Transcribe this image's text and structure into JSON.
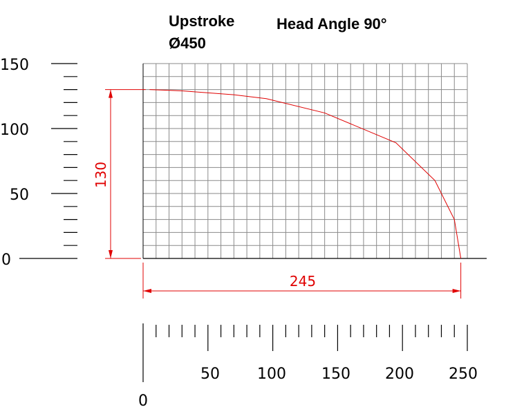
{
  "chart_data": {
    "type": "line",
    "title": "Upstroke",
    "subtitle": "Ø450",
    "annotation": "Head Angle 90°",
    "xlim": [
      0,
      250
    ],
    "ylim": [
      0,
      150
    ],
    "x_ticks": [
      "0",
      "50",
      "100",
      "150",
      "200",
      "250"
    ],
    "y_ticks": [
      "0",
      "50",
      "100",
      "150"
    ],
    "grid": true,
    "series": [
      {
        "color": "#e00000",
        "x": [
          5,
          30,
          70,
          95,
          140,
          195,
          225,
          240,
          245
        ],
        "y": [
          130,
          129,
          126,
          123,
          112,
          89,
          60,
          30,
          0
        ]
      }
    ],
    "dimensions": {
      "height_label": "130",
      "width_label": "245",
      "height_value": 130,
      "width_value": 245
    }
  }
}
